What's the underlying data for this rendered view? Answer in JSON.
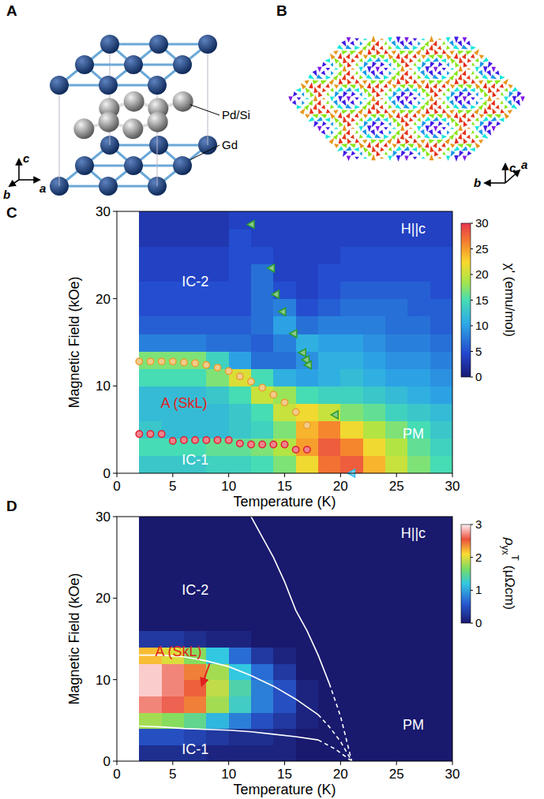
{
  "crystal": {
    "panel": "A",
    "atoms": [
      "Gd",
      "Pd/Si"
    ],
    "axes": [
      "b",
      "c",
      "a"
    ]
  },
  "skyrmion_lattice": {
    "panel": "B",
    "axes": [
      "a",
      "b",
      "c"
    ]
  },
  "chart_data": [
    {
      "type": "heatmap",
      "panel": "C",
      "x_label": "Temperature (K)",
      "y_label": "Magnetic Field (kOe)",
      "xlim": [
        0,
        30
      ],
      "ylim": [
        0,
        30
      ],
      "xticks": [
        0,
        5,
        10,
        15,
        20,
        25,
        30
      ],
      "yticks": [
        0,
        10,
        20,
        30
      ],
      "x": [
        3,
        5,
        7,
        9,
        11,
        13,
        15,
        17,
        19,
        21,
        23,
        25,
        27,
        29
      ],
      "y": [
        1,
        3,
        5,
        7,
        9,
        11,
        13,
        15,
        17,
        19,
        21,
        23,
        25,
        27,
        29
      ],
      "cells": [
        [
          13,
          13,
          13,
          14,
          14,
          15,
          17,
          22,
          27,
          28,
          24,
          20,
          17,
          15
        ],
        [
          15,
          15,
          15,
          16,
          16,
          17,
          19,
          25,
          28,
          26,
          22,
          19,
          16,
          14
        ],
        [
          13,
          12,
          12,
          12,
          13,
          14,
          17,
          24,
          26,
          22,
          19,
          17,
          15,
          13
        ],
        [
          12,
          12,
          12,
          12,
          13,
          15,
          20,
          22,
          20,
          17,
          16,
          14,
          13,
          12
        ],
        [
          12,
          12,
          12,
          13,
          15,
          20,
          18,
          15,
          14,
          14,
          13,
          12,
          11,
          10
        ],
        [
          15,
          15,
          15,
          17,
          21,
          15,
          11,
          10,
          11,
          12,
          11,
          10,
          10,
          9
        ],
        [
          17,
          17,
          17,
          14,
          10,
          7,
          7,
          9,
          11,
          11,
          10,
          9,
          9,
          8
        ],
        [
          8,
          8,
          8,
          7,
          7,
          6,
          8,
          11,
          10,
          10,
          9,
          8,
          8,
          7
        ],
        [
          6,
          6,
          6,
          6,
          6,
          7,
          10,
          7,
          8,
          8,
          8,
          7,
          7,
          6
        ],
        [
          5,
          5,
          5,
          5,
          5,
          7,
          8,
          5,
          6,
          7,
          7,
          7,
          6,
          6
        ],
        [
          5,
          5,
          5,
          5,
          5,
          7,
          5,
          4,
          5,
          6,
          6,
          6,
          6,
          5
        ],
        [
          4,
          4,
          4,
          4,
          5,
          7,
          4,
          4,
          5,
          5,
          5,
          5,
          5,
          5
        ],
        [
          4,
          4,
          4,
          4,
          5,
          5,
          4,
          4,
          4,
          5,
          5,
          5,
          5,
          5
        ],
        [
          3,
          3,
          3,
          3,
          5,
          4,
          4,
          4,
          4,
          4,
          4,
          4,
          4,
          4
        ],
        [
          3,
          3,
          3,
          3,
          4,
          4,
          4,
          4,
          4,
          4,
          4,
          4,
          4,
          4
        ]
      ],
      "colorbar": {
        "label": "χ' (emu/mol)",
        "range": [
          0,
          30
        ],
        "ticks": [
          0,
          5,
          10,
          15,
          20,
          25,
          30
        ]
      },
      "series": [
        {
          "type": "scatter",
          "marker": "circle",
          "color": "#e8a030",
          "x": [
            2,
            3,
            4,
            5,
            6,
            7,
            8,
            9,
            10,
            11,
            12,
            13,
            14,
            15,
            16,
            17
          ],
          "values": [
            12.8,
            12.8,
            12.8,
            12.8,
            12.7,
            12.6,
            12.4,
            12.1,
            11.7,
            11.1,
            10.5,
            9.8,
            9.0,
            8.1,
            7.0,
            5.5
          ]
        },
        {
          "type": "scatter",
          "marker": "circle",
          "color": "#e02030",
          "x": [
            2,
            3,
            4,
            5,
            6,
            7,
            8,
            9,
            10,
            11,
            12,
            13,
            14,
            15,
            16,
            17
          ],
          "values": [
            4.5,
            4.5,
            4.5,
            3.7,
            3.8,
            3.8,
            3.8,
            3.8,
            3.8,
            3.4,
            3.3,
            3.3,
            3.3,
            3.3,
            2.7,
            2.7
          ]
        },
        {
          "type": "scatter",
          "marker": "triangle-left",
          "color": "#2a9d2a",
          "x": [
            12,
            13.8,
            14.2,
            14.8,
            15.8,
            16.6,
            16.9,
            17.1,
            19.5
          ],
          "values": [
            28.5,
            23.5,
            20.5,
            18.5,
            16,
            13.8,
            13,
            12.4,
            6.7
          ]
        },
        {
          "type": "scatter",
          "marker": "triangle-left",
          "color": "#33bbee",
          "x": [
            21
          ],
          "values": [
            0
          ]
        }
      ],
      "annotations": [
        {
          "text": "IC-2",
          "x": 7,
          "y": 22
        },
        {
          "text": "A (SkL)",
          "x": 6,
          "y": 8,
          "color": "#e02020"
        },
        {
          "text": "IC-1",
          "x": 7,
          "y": 1.5
        },
        {
          "text": "PM",
          "x": 26.5,
          "y": 4.5
        },
        {
          "text": "H||c",
          "x": 26.5,
          "y": 28
        }
      ]
    },
    {
      "type": "heatmap",
      "panel": "D",
      "x_label": "Temperature (K)",
      "y_label": "Magnetic Field (kOe)",
      "xlim": [
        0,
        30
      ],
      "ylim": [
        0,
        30
      ],
      "xticks": [
        0,
        5,
        10,
        15,
        20,
        25,
        30
      ],
      "yticks": [
        0,
        10,
        20,
        30
      ],
      "x": [
        3,
        5,
        7,
        9,
        11,
        13,
        15,
        17,
        19,
        21,
        23,
        25,
        27,
        29
      ],
      "y": [
        1,
        3,
        5,
        7,
        9,
        11,
        13,
        15,
        17,
        19,
        21,
        23,
        25,
        27,
        29
      ],
      "cells": [
        [
          0.2,
          0.2,
          0.2,
          0.1,
          0.1,
          0.1,
          0.1,
          0,
          0,
          0,
          0,
          0,
          0,
          0
        ],
        [
          0.5,
          0.5,
          0.4,
          0.3,
          0.2,
          0.2,
          0.1,
          0,
          0,
          0,
          0,
          0,
          0,
          0
        ],
        [
          1.8,
          1.7,
          1.5,
          1.1,
          0.8,
          0.5,
          0.3,
          0.1,
          0,
          0,
          0,
          0,
          0,
          0
        ],
        [
          2.7,
          2.6,
          2.4,
          1.8,
          1.3,
          0.8,
          0.5,
          0.1,
          0,
          0,
          0,
          0,
          0,
          0
        ],
        [
          2.9,
          2.7,
          2.5,
          1.9,
          1.4,
          0.8,
          0.5,
          0.1,
          0,
          0,
          0,
          0,
          0,
          0
        ],
        [
          2.9,
          2.7,
          2.4,
          1.8,
          1.2,
          0.7,
          0.3,
          0,
          0,
          0,
          0,
          0,
          0,
          0
        ],
        [
          2.2,
          2.0,
          1.7,
          1.2,
          0.7,
          0.3,
          0.1,
          0,
          0,
          0,
          0,
          0,
          0,
          0
        ],
        [
          0.3,
          0.3,
          0.2,
          0.1,
          0.1,
          0,
          0,
          0,
          0,
          0,
          0,
          0,
          0,
          0
        ],
        [
          0,
          0,
          0,
          0,
          0,
          0,
          0,
          0,
          0,
          0,
          0,
          0,
          0,
          0
        ],
        [
          0,
          0,
          0,
          0,
          0,
          0,
          0,
          0,
          0,
          0,
          0,
          0,
          0,
          0
        ],
        [
          0,
          0,
          0,
          0,
          0,
          0,
          0,
          0,
          0,
          0,
          0,
          0,
          0,
          0
        ],
        [
          0,
          0,
          0,
          0,
          0,
          0,
          0,
          0,
          0,
          0,
          0,
          0,
          0,
          0
        ],
        [
          0,
          0,
          0,
          0,
          0,
          0,
          0,
          0,
          0,
          0,
          0,
          0,
          0,
          0
        ],
        [
          0,
          0,
          0,
          0,
          0,
          0,
          0,
          0,
          0,
          0,
          0,
          0,
          0,
          0
        ],
        [
          0,
          0,
          0,
          0,
          0,
          0,
          0,
          0,
          0,
          0,
          0,
          0,
          0,
          0
        ]
      ],
      "colorbar": {
        "label": {
          "base": "ρ",
          "sub": "yx",
          "sup": "T",
          "unit": "(μΩcm)"
        },
        "range": [
          0,
          3
        ],
        "ticks": [
          0,
          1,
          2,
          3
        ]
      },
      "series": [
        {
          "type": "line",
          "line_style": "solid",
          "color": "#ffffff",
          "x": [
            2,
            4,
            6,
            8,
            10,
            12,
            14,
            16,
            18
          ],
          "values": [
            13,
            13,
            12.8,
            12.3,
            11.6,
            10.5,
            9.2,
            7.6,
            5.7
          ]
        },
        {
          "type": "line",
          "line_style": "dashed",
          "color": "#ffffff",
          "x": [
            18,
            19,
            20,
            21
          ],
          "values": [
            5.7,
            4.2,
            2.4,
            0
          ]
        },
        {
          "type": "line",
          "line_style": "solid",
          "color": "#ffffff",
          "x": [
            2,
            4,
            6,
            8,
            10,
            12,
            14,
            16,
            18
          ],
          "values": [
            4.3,
            4.2,
            4.0,
            3.9,
            3.8,
            3.6,
            3.3,
            3.0,
            2.6
          ]
        },
        {
          "type": "line",
          "line_style": "dashed",
          "color": "#ffffff",
          "x": [
            18,
            19.5,
            21
          ],
          "values": [
            2.6,
            1.5,
            0
          ]
        },
        {
          "type": "line",
          "line_style": "solid",
          "color": "#ffffff",
          "x": [
            12,
            13,
            14,
            15,
            16,
            17,
            18,
            19
          ],
          "values": [
            30,
            27.5,
            25,
            22,
            18.5,
            16,
            13,
            9.5
          ]
        },
        {
          "type": "line",
          "line_style": "dashed",
          "color": "#ffffff",
          "x": [
            19,
            20,
            21
          ],
          "values": [
            9.5,
            5.5,
            0
          ]
        }
      ],
      "annotations": [
        {
          "text": "IC-2",
          "x": 7,
          "y": 21
        },
        {
          "text": "A (SkL)",
          "x": 5.5,
          "y": 13.5,
          "color": "#e02020",
          "arrow_from": [
            8.3,
            12
          ],
          "arrow_to": [
            7.6,
            9.3
          ]
        },
        {
          "text": "IC-1",
          "x": 7,
          "y": 1.5
        },
        {
          "text": "PM",
          "x": 26.5,
          "y": 4.5
        },
        {
          "text": "H||c",
          "x": 26.5,
          "y": 28
        }
      ]
    }
  ]
}
